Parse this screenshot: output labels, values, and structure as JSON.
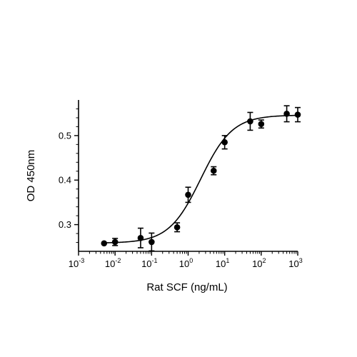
{
  "chart_data": {
    "type": "scatter",
    "xscale": "log",
    "xlabel": "Rat SCF (ng/mL)",
    "ylabel": "OD 450nm",
    "xlim": [
      0.001,
      1000
    ],
    "ylim": [
      0.24,
      0.58
    ],
    "yticks": [
      0.3,
      0.4,
      0.5
    ],
    "ytick_labels": [
      "0.3",
      "0.4",
      "0.5"
    ],
    "xticks_major": [
      0.001,
      0.01,
      0.1,
      1,
      10,
      100,
      1000
    ],
    "xtick_labels": [
      {
        "base": "10",
        "exp": "-3"
      },
      {
        "base": "10",
        "exp": "-2"
      },
      {
        "base": "10",
        "exp": "-1"
      },
      {
        "base": "10",
        "exp": "0"
      },
      {
        "base": "10",
        "exp": "1"
      },
      {
        "base": "10",
        "exp": "2"
      },
      {
        "base": "10",
        "exp": "3"
      }
    ],
    "grid": false,
    "points": [
      {
        "x": 0.005,
        "y": 0.258,
        "err": 0.0
      },
      {
        "x": 0.01,
        "y": 0.261,
        "err": 0.008
      },
      {
        "x": 0.05,
        "y": 0.27,
        "err": 0.022
      },
      {
        "x": 0.1,
        "y": 0.261,
        "err": 0.02
      },
      {
        "x": 0.5,
        "y": 0.294,
        "err": 0.01
      },
      {
        "x": 1,
        "y": 0.367,
        "err": 0.017
      },
      {
        "x": 5,
        "y": 0.421,
        "err": 0.009
      },
      {
        "x": 10,
        "y": 0.485,
        "err": 0.015
      },
      {
        "x": 50,
        "y": 0.532,
        "err": 0.02
      },
      {
        "x": 100,
        "y": 0.526,
        "err": 0.009
      },
      {
        "x": 500,
        "y": 0.549,
        "err": 0.018
      },
      {
        "x": 1000,
        "y": 0.547,
        "err": 0.016
      }
    ],
    "fit": {
      "model": "4PL",
      "bottom": 0.2585,
      "top": 0.546,
      "ec50": 2.2,
      "hill": 1.0,
      "x_range": [
        0.005,
        1000
      ]
    },
    "colors": {
      "marker": "#000000",
      "line": "#000000"
    }
  }
}
